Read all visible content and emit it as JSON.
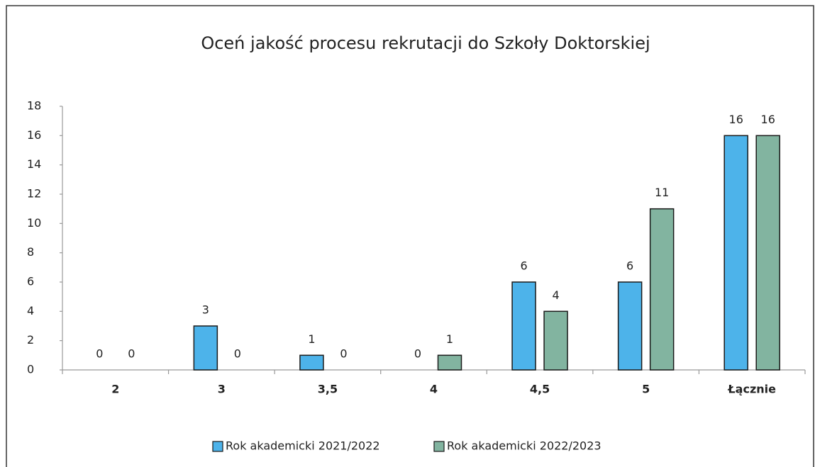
{
  "chart_data": {
    "type": "bar",
    "title": "Oceń jakość procesu rekrutacji do Szkoły Doktorskiej",
    "categories": [
      "2",
      "3",
      "3,5",
      "4",
      "4,5",
      "5",
      "Łącznie"
    ],
    "series": [
      {
        "name": "Rok akademicki 2021/2022",
        "color": "#4db3ea",
        "values": [
          0,
          3,
          1,
          0,
          6,
          6,
          16
        ]
      },
      {
        "name": "Rok akademicki 2022/2023",
        "color": "#82b4a0",
        "values": [
          0,
          0,
          0,
          1,
          4,
          11,
          16
        ]
      }
    ],
    "ylim": [
      0,
      18
    ],
    "yticks": [
      0,
      2,
      4,
      6,
      8,
      10,
      12,
      14,
      16,
      18
    ],
    "grid": false,
    "legend": "bottom"
  }
}
